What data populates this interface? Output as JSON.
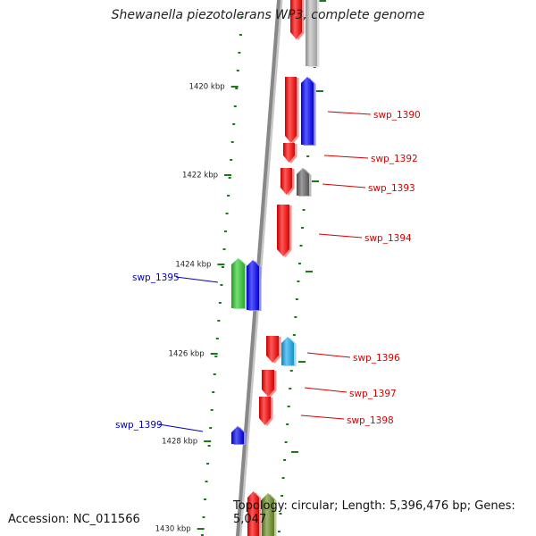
{
  "title": "Shewanella piezotolerans WP3, complete genome",
  "footer": {
    "accession": "Accession: NC_011566",
    "topology": "Topology: circular; Length: 5,396,476 bp; Genes: 5,047"
  },
  "colors": {
    "backbone": "#888888",
    "tick": "#1a7a1a",
    "label_forward": "#d60000",
    "label_reverse": "#0000c8"
  },
  "kbp_labels": [
    "1420 kbp",
    "1422 kbp",
    "1424 kbp",
    "1426 kbp",
    "1428 kbp",
    "1430 kbp"
  ],
  "genes": [
    {
      "strand": "forward",
      "name": "swp_1390",
      "color": "#0000ff"
    },
    {
      "strand": "forward",
      "name": "swp_1392",
      "color": "#ff0000"
    },
    {
      "strand": "forward",
      "name": "swp_1393",
      "color": "#666666"
    },
    {
      "strand": "forward",
      "name": "swp_1394",
      "color": "#ff0000"
    },
    {
      "strand": "reverse",
      "name": "swp_1395",
      "color": "#2ecc2e"
    },
    {
      "strand": "forward",
      "name": "swp_1396",
      "color": "#1aaaee"
    },
    {
      "strand": "forward",
      "name": "swp_1397",
      "color": "#ff0000"
    },
    {
      "strand": "forward",
      "name": "swp_1398",
      "color": "#ff0000"
    },
    {
      "strand": "reverse",
      "name": "swp_1399",
      "color": "#0000ee"
    }
  ]
}
